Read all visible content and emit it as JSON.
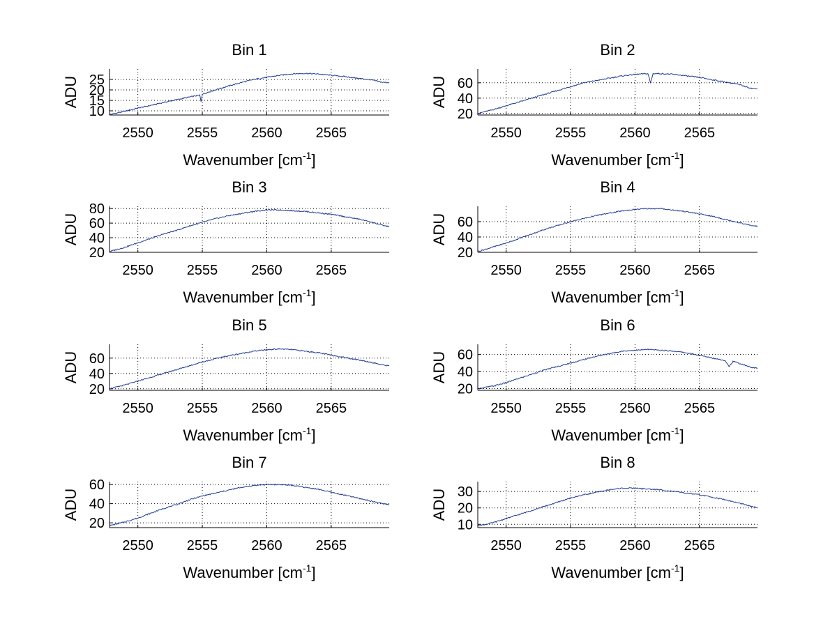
{
  "figure": {
    "background": "#ffffff",
    "line_color": "#1f3a93",
    "grid_color": "#000000"
  },
  "chart_data": [
    {
      "type": "line",
      "title": "Bin 1",
      "xlabel": "Wavenumber [cm",
      "xlabel_sup": "-1",
      "xlabel_close": "]",
      "ylabel": "ADU",
      "xlim": [
        2547.8,
        2569.5
      ],
      "ylim": [
        8,
        30
      ],
      "xticks": [
        2550,
        2555,
        2560,
        2565
      ],
      "xtick_labels": [
        "2550",
        "2555",
        "2560",
        "2565"
      ],
      "yticks": [
        10,
        15,
        20,
        25
      ],
      "ytick_labels": [
        "10",
        "15",
        "20",
        "25"
      ],
      "grid": true,
      "series": [
        {
          "name": "Bin 1",
          "x": [
            2547.8,
            2549,
            2550,
            2551,
            2552,
            2553,
            2554,
            2554.8,
            2554.9,
            2555.0,
            2556,
            2557,
            2558,
            2559,
            2560,
            2561,
            2562,
            2563,
            2564,
            2565,
            2566,
            2567,
            2568,
            2569,
            2569.5
          ],
          "y": [
            8.2,
            9.8,
            11.3,
            12.6,
            14.0,
            15.3,
            16.6,
            17.5,
            14.5,
            18.0,
            20.0,
            21.8,
            23.5,
            25.0,
            26.0,
            27.0,
            27.7,
            27.9,
            27.6,
            27.0,
            26.4,
            25.6,
            24.9,
            23.6,
            23.5
          ]
        }
      ]
    },
    {
      "type": "line",
      "title": "Bin 2",
      "xlabel": "Wavenumber [cm",
      "xlabel_sup": "-1",
      "xlabel_close": "]",
      "ylabel": "ADU",
      "xlim": [
        2547.8,
        2569.5
      ],
      "ylim": [
        18,
        78
      ],
      "xticks": [
        2550,
        2555,
        2560,
        2565
      ],
      "xtick_labels": [
        "2550",
        "2555",
        "2560",
        "2565"
      ],
      "yticks": [
        20,
        40,
        60
      ],
      "ytick_labels": [
        "20",
        "40",
        "60"
      ],
      "grid": true,
      "series": [
        {
          "name": "Bin 2",
          "x": [
            2547.8,
            2549,
            2550,
            2551,
            2552,
            2553,
            2554,
            2555,
            2556,
            2557,
            2558,
            2559,
            2560,
            2561,
            2561.2,
            2561.4,
            2562,
            2563,
            2564,
            2565,
            2566,
            2567,
            2568,
            2569,
            2569.5
          ],
          "y": [
            20,
            25,
            30,
            35,
            40,
            45,
            50,
            55,
            60,
            63,
            66,
            69,
            71,
            72,
            60,
            72,
            72,
            71,
            69,
            67,
            64,
            61,
            58,
            53,
            52
          ]
        }
      ]
    },
    {
      "type": "line",
      "title": "Bin 3",
      "xlabel": "Wavenumber [cm",
      "xlabel_sup": "-1",
      "xlabel_close": "]",
      "ylabel": "ADU",
      "xlim": [
        2547.8,
        2569.5
      ],
      "ylim": [
        20,
        83
      ],
      "xticks": [
        2550,
        2555,
        2560,
        2565
      ],
      "xtick_labels": [
        "2550",
        "2555",
        "2560",
        "2565"
      ],
      "yticks": [
        20,
        40,
        60,
        80
      ],
      "ytick_labels": [
        "20",
        "40",
        "60",
        "80"
      ],
      "grid": true,
      "series": [
        {
          "name": "Bin 3",
          "x": [
            2547.8,
            2549,
            2550,
            2551,
            2552,
            2553,
            2554,
            2555,
            2556,
            2557,
            2558,
            2559,
            2560,
            2561,
            2562,
            2563,
            2564,
            2565,
            2566,
            2567,
            2568,
            2569,
            2569.5
          ],
          "y": [
            21,
            27,
            33,
            39,
            45,
            50,
            56,
            61,
            66,
            70,
            73,
            76,
            78,
            78,
            77,
            76,
            74,
            72,
            69,
            66,
            62,
            57,
            55
          ]
        }
      ]
    },
    {
      "type": "line",
      "title": "Bin 4",
      "xlabel": "Wavenumber [cm",
      "xlabel_sup": "-1",
      "xlabel_close": "]",
      "ylabel": "ADU",
      "xlim": [
        2547.8,
        2569.5
      ],
      "ylim": [
        20,
        80
      ],
      "xticks": [
        2550,
        2555,
        2560,
        2565
      ],
      "xtick_labels": [
        "2550",
        "2555",
        "2560",
        "2565"
      ],
      "yticks": [
        20,
        40,
        60
      ],
      "ytick_labels": [
        "20",
        "40",
        "60"
      ],
      "grid": true,
      "series": [
        {
          "name": "Bin 4",
          "x": [
            2547.8,
            2549,
            2550,
            2551,
            2552,
            2553,
            2554,
            2555,
            2556,
            2557,
            2558,
            2559,
            2560,
            2561,
            2562,
            2563,
            2564,
            2565,
            2566,
            2567,
            2568,
            2569,
            2569.5
          ],
          "y": [
            21,
            27,
            32,
            38,
            44,
            50,
            55,
            60,
            64,
            68,
            71,
            74,
            76,
            77,
            77,
            75,
            73,
            70,
            67,
            63,
            59,
            55,
            54
          ]
        }
      ]
    },
    {
      "type": "line",
      "title": "Bin 5",
      "xlabel": "Wavenumber [cm",
      "xlabel_sup": "-1",
      "xlabel_close": "]",
      "ylabel": "ADU",
      "xlim": [
        2547.8,
        2569.5
      ],
      "ylim": [
        18,
        78
      ],
      "xticks": [
        2550,
        2555,
        2560,
        2565
      ],
      "xtick_labels": [
        "2550",
        "2555",
        "2560",
        "2565"
      ],
      "yticks": [
        20,
        40,
        60
      ],
      "ytick_labels": [
        "20",
        "40",
        "60"
      ],
      "grid": true,
      "series": [
        {
          "name": "Bin 5",
          "x": [
            2547.8,
            2549,
            2550,
            2551,
            2552,
            2553,
            2554,
            2555,
            2556,
            2557,
            2558,
            2559,
            2560,
            2561,
            2562,
            2563,
            2564,
            2565,
            2566,
            2567,
            2568,
            2569,
            2569.5
          ],
          "y": [
            20,
            25,
            30,
            35,
            40,
            45,
            50,
            55,
            59,
            63,
            66,
            69,
            71,
            72,
            71,
            69,
            67,
            64,
            61,
            58,
            55,
            51,
            50
          ]
        }
      ]
    },
    {
      "type": "line",
      "title": "Bin 6",
      "xlabel": "Wavenumber [cm",
      "xlabel_sup": "-1",
      "xlabel_close": "]",
      "ylabel": "ADU",
      "xlim": [
        2547.8,
        2569.5
      ],
      "ylim": [
        18,
        72
      ],
      "xticks": [
        2550,
        2555,
        2560,
        2565
      ],
      "xtick_labels": [
        "2550",
        "2555",
        "2560",
        "2565"
      ],
      "yticks": [
        20,
        40,
        60
      ],
      "ytick_labels": [
        "20",
        "40",
        "60"
      ],
      "grid": true,
      "series": [
        {
          "name": "Bin 6",
          "x": [
            2547.8,
            2549,
            2550,
            2551,
            2552,
            2553,
            2554,
            2555,
            2556,
            2557,
            2558,
            2559,
            2560,
            2561,
            2562,
            2563,
            2564,
            2565,
            2566,
            2567,
            2567.3,
            2567.6,
            2568,
            2569,
            2569.5
          ],
          "y": [
            20,
            23,
            27,
            32,
            37,
            42,
            46,
            50,
            54,
            58,
            61,
            64,
            65,
            66,
            65,
            64,
            62,
            59,
            56,
            53,
            46,
            52,
            50,
            45,
            44
          ]
        }
      ]
    },
    {
      "type": "line",
      "title": "Bin 7",
      "xlabel": "Wavenumber [cm",
      "xlabel_sup": "-1",
      "xlabel_close": "]",
      "ylabel": "ADU",
      "xlim": [
        2547.8,
        2569.5
      ],
      "ylim": [
        15,
        63
      ],
      "xticks": [
        2550,
        2555,
        2560,
        2565
      ],
      "xtick_labels": [
        "2550",
        "2555",
        "2560",
        "2565"
      ],
      "yticks": [
        20,
        40,
        60
      ],
      "ytick_labels": [
        "20",
        "40",
        "60"
      ],
      "grid": true,
      "series": [
        {
          "name": "Bin 7",
          "x": [
            2547.8,
            2549,
            2550,
            2551,
            2552,
            2553,
            2554,
            2555,
            2556,
            2557,
            2558,
            2559,
            2560,
            2561,
            2562,
            2563,
            2564,
            2565,
            2566,
            2567,
            2568,
            2569,
            2569.5
          ],
          "y": [
            17,
            21,
            25,
            30,
            35,
            39,
            44,
            48,
            51,
            54,
            57,
            59,
            60,
            60,
            59,
            57,
            55,
            52,
            49,
            46,
            43,
            40,
            39
          ]
        }
      ]
    },
    {
      "type": "line",
      "title": "Bin 8",
      "xlabel": "Wavenumber [cm",
      "xlabel_sup": "-1",
      "xlabel_close": "]",
      "ylabel": "ADU",
      "xlim": [
        2547.8,
        2569.5
      ],
      "ylim": [
        8,
        36
      ],
      "xticks": [
        2550,
        2555,
        2560,
        2565
      ],
      "xtick_labels": [
        "2550",
        "2555",
        "2560",
        "2565"
      ],
      "yticks": [
        10,
        20,
        30
      ],
      "ytick_labels": [
        "10",
        "20",
        "30"
      ],
      "grid": true,
      "series": [
        {
          "name": "Bin 8",
          "x": [
            2547.8,
            2549,
            2550,
            2551,
            2552,
            2553,
            2554,
            2555,
            2556,
            2557,
            2558,
            2559,
            2560,
            2561,
            2562,
            2563,
            2564,
            2565,
            2566,
            2567,
            2568,
            2569,
            2569.5
          ],
          "y": [
            9,
            11,
            13.5,
            16,
            18.5,
            21,
            23.5,
            26,
            28,
            29.5,
            31,
            32,
            32,
            31.5,
            31,
            30,
            29,
            28,
            26.5,
            25,
            23,
            21,
            20
          ]
        }
      ]
    }
  ]
}
